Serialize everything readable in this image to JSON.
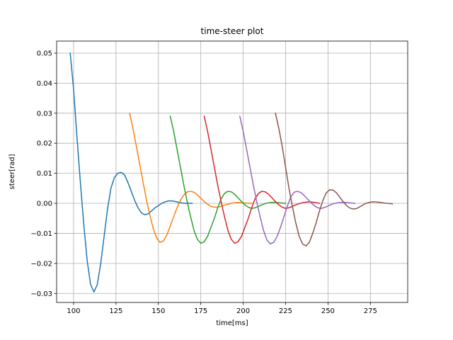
{
  "chart_data": {
    "type": "line",
    "title": "time-steer plot",
    "xlabel": "time[ms]",
    "ylabel": "steer[rad]",
    "xlim": [
      90,
      297
    ],
    "ylim": [
      -0.033,
      0.054
    ],
    "xticks": [
      100,
      125,
      150,
      175,
      200,
      225,
      250,
      275
    ],
    "xtick_labels": [
      "100",
      "125",
      "150",
      "175",
      "200",
      "225",
      "250",
      "275"
    ],
    "yticks": [
      -0.03,
      -0.02,
      -0.01,
      0.0,
      0.01,
      0.02,
      0.03,
      0.04,
      0.05
    ],
    "ytick_labels": [
      "−0.03",
      "−0.02",
      "−0.01",
      "0.00",
      "0.01",
      "0.02",
      "0.03",
      "0.04",
      "0.05"
    ],
    "grid": true,
    "legend": "none",
    "series": [
      {
        "color": "#1f77b4",
        "points": [
          [
            98,
            0.05
          ],
          [
            100,
            0.038
          ],
          [
            102,
            0.022
          ],
          [
            104,
            0.007
          ],
          [
            106,
            -0.007
          ],
          [
            108,
            -0.019
          ],
          [
            110,
            -0.027
          ],
          [
            112,
            -0.0295
          ],
          [
            114,
            -0.027
          ],
          [
            116,
            -0.02
          ],
          [
            118,
            -0.011
          ],
          [
            120,
            -0.002
          ],
          [
            122,
            0.005
          ],
          [
            124,
            0.0085
          ],
          [
            126,
            0.01
          ],
          [
            128,
            0.0103
          ],
          [
            130,
            0.0095
          ],
          [
            132,
            0.007
          ],
          [
            134,
            0.004
          ],
          [
            136,
            0.001
          ],
          [
            138,
            -0.0015
          ],
          [
            140,
            -0.0032
          ],
          [
            142,
            -0.0038
          ],
          [
            144,
            -0.0035
          ],
          [
            146,
            -0.0025
          ],
          [
            148,
            -0.0015
          ],
          [
            150,
            -0.0008
          ],
          [
            152,
            0.0
          ],
          [
            154,
            0.0005
          ],
          [
            156,
            0.0008
          ],
          [
            158,
            0.0008
          ],
          [
            160,
            0.0006
          ],
          [
            162,
            0.0003
          ],
          [
            164,
            0.0001
          ],
          [
            166,
            0.0
          ],
          [
            168,
            0.0
          ],
          [
            170,
            0.0
          ]
        ]
      },
      {
        "color": "#ff7f0e",
        "points": [
          [
            133,
            0.03
          ],
          [
            135,
            0.025
          ],
          [
            137,
            0.019
          ],
          [
            139,
            0.013
          ],
          [
            141,
            0.007
          ],
          [
            143,
            0.001
          ],
          [
            145,
            -0.004
          ],
          [
            147,
            -0.0085
          ],
          [
            149,
            -0.0115
          ],
          [
            151,
            -0.013
          ],
          [
            153,
            -0.0125
          ],
          [
            155,
            -0.0105
          ],
          [
            157,
            -0.0075
          ],
          [
            159,
            -0.0045
          ],
          [
            161,
            -0.0015
          ],
          [
            163,
            0.001
          ],
          [
            165,
            0.0028
          ],
          [
            167,
            0.0038
          ],
          [
            169,
            0.004
          ],
          [
            171,
            0.0037
          ],
          [
            173,
            0.0028
          ],
          [
            175,
            0.0017
          ],
          [
            177,
            0.0006
          ],
          [
            179,
            -0.0003
          ],
          [
            181,
            -0.001
          ],
          [
            183,
            -0.0013
          ],
          [
            185,
            -0.0013
          ],
          [
            187,
            -0.001
          ],
          [
            189,
            -0.0006
          ],
          [
            191,
            -0.0003
          ],
          [
            193,
            0.0
          ],
          [
            195,
            0.0002
          ],
          [
            197,
            0.0003
          ],
          [
            199,
            0.0002
          ],
          [
            201,
            0.0001
          ],
          [
            203,
            0.0
          ],
          [
            205,
            0.0
          ]
        ]
      },
      {
        "color": "#2ca02c",
        "points": [
          [
            157,
            0.029
          ],
          [
            159,
            0.024
          ],
          [
            161,
            0.018
          ],
          [
            163,
            0.012
          ],
          [
            165,
            0.006
          ],
          [
            167,
            0.0005
          ],
          [
            169,
            -0.0045
          ],
          [
            171,
            -0.009
          ],
          [
            173,
            -0.012
          ],
          [
            175,
            -0.0133
          ],
          [
            177,
            -0.0128
          ],
          [
            179,
            -0.011
          ],
          [
            181,
            -0.008
          ],
          [
            183,
            -0.005
          ],
          [
            185,
            -0.0015
          ],
          [
            187,
            0.0015
          ],
          [
            189,
            0.0033
          ],
          [
            191,
            0.004
          ],
          [
            193,
            0.0038
          ],
          [
            195,
            0.003
          ],
          [
            197,
            0.0018
          ],
          [
            199,
            0.0006
          ],
          [
            201,
            -0.0005
          ],
          [
            203,
            -0.0013
          ],
          [
            205,
            -0.0017
          ],
          [
            207,
            -0.0015
          ],
          [
            209,
            -0.001
          ],
          [
            211,
            -0.0005
          ],
          [
            213,
            -0.0001
          ],
          [
            215,
            0.0002
          ],
          [
            217,
            0.0003
          ],
          [
            219,
            0.0003
          ],
          [
            221,
            0.0002
          ],
          [
            223,
            0.0001
          ],
          [
            225,
            0.0
          ]
        ]
      },
      {
        "color": "#d62728",
        "points": [
          [
            177,
            0.029
          ],
          [
            179,
            0.024
          ],
          [
            181,
            0.018
          ],
          [
            183,
            0.012
          ],
          [
            185,
            0.006
          ],
          [
            187,
            0.0005
          ],
          [
            189,
            -0.0045
          ],
          [
            191,
            -0.009
          ],
          [
            193,
            -0.012
          ],
          [
            195,
            -0.0133
          ],
          [
            197,
            -0.0128
          ],
          [
            199,
            -0.011
          ],
          [
            201,
            -0.008
          ],
          [
            203,
            -0.005
          ],
          [
            205,
            -0.0015
          ],
          [
            207,
            0.0015
          ],
          [
            209,
            0.0033
          ],
          [
            211,
            0.004
          ],
          [
            213,
            0.0038
          ],
          [
            215,
            0.003
          ],
          [
            217,
            0.0018
          ],
          [
            219,
            0.0006
          ],
          [
            221,
            -0.0005
          ],
          [
            223,
            -0.0013
          ],
          [
            225,
            -0.0017
          ],
          [
            227,
            -0.0015
          ],
          [
            229,
            -0.001
          ],
          [
            231,
            -0.0005
          ],
          [
            233,
            -0.0001
          ],
          [
            235,
            0.0002
          ],
          [
            237,
            0.0004
          ],
          [
            239,
            0.0005
          ],
          [
            241,
            0.0004
          ],
          [
            243,
            0.0002
          ],
          [
            245,
            0.0
          ]
        ]
      },
      {
        "color": "#9467bd",
        "points": [
          [
            198,
            0.029
          ],
          [
            200,
            0.024
          ],
          [
            202,
            0.018
          ],
          [
            204,
            0.012
          ],
          [
            206,
            0.006
          ],
          [
            208,
            0.0005
          ],
          [
            210,
            -0.0045
          ],
          [
            212,
            -0.009
          ],
          [
            214,
            -0.0122
          ],
          [
            216,
            -0.0135
          ],
          [
            218,
            -0.013
          ],
          [
            220,
            -0.011
          ],
          [
            222,
            -0.008
          ],
          [
            224,
            -0.0045
          ],
          [
            226,
            -0.001
          ],
          [
            228,
            0.002
          ],
          [
            230,
            0.0037
          ],
          [
            232,
            0.004
          ],
          [
            234,
            0.0036
          ],
          [
            236,
            0.0026
          ],
          [
            238,
            0.0014
          ],
          [
            240,
            0.0002
          ],
          [
            242,
            -0.0008
          ],
          [
            244,
            -0.0015
          ],
          [
            246,
            -0.0017
          ],
          [
            248,
            -0.0014
          ],
          [
            250,
            -0.0009
          ],
          [
            252,
            -0.0004
          ],
          [
            254,
            0.0
          ],
          [
            256,
            0.0002
          ],
          [
            258,
            0.0003
          ],
          [
            260,
            0.0003
          ],
          [
            262,
            0.0002
          ],
          [
            264,
            0.0001
          ],
          [
            266,
            0.0
          ]
        ]
      },
      {
        "color": "#8c564b",
        "points": [
          [
            219,
            0.03
          ],
          [
            221,
            0.025
          ],
          [
            223,
            0.019
          ],
          [
            225,
            0.012
          ],
          [
            227,
            0.005
          ],
          [
            229,
            -0.001
          ],
          [
            231,
            -0.0065
          ],
          [
            233,
            -0.011
          ],
          [
            235,
            -0.0135
          ],
          [
            237,
            -0.0142
          ],
          [
            239,
            -0.013
          ],
          [
            241,
            -0.01
          ],
          [
            243,
            -0.0065
          ],
          [
            245,
            -0.0025
          ],
          [
            247,
            0.001
          ],
          [
            249,
            0.0035
          ],
          [
            251,
            0.0045
          ],
          [
            253,
            0.0044
          ],
          [
            255,
            0.0035
          ],
          [
            257,
            0.002
          ],
          [
            259,
            0.0005
          ],
          [
            261,
            -0.0008
          ],
          [
            263,
            -0.0016
          ],
          [
            265,
            -0.0019
          ],
          [
            267,
            -0.0017
          ],
          [
            269,
            -0.0011
          ],
          [
            271,
            -0.0004
          ],
          [
            273,
            0.0001
          ],
          [
            275,
            0.0004
          ],
          [
            277,
            0.0005
          ],
          [
            279,
            0.0004
          ],
          [
            281,
            0.0003
          ],
          [
            283,
            0.0001
          ],
          [
            285,
            0.0
          ],
          [
            287,
            -0.0001
          ],
          [
            288,
            -0.0002
          ]
        ]
      }
    ]
  }
}
